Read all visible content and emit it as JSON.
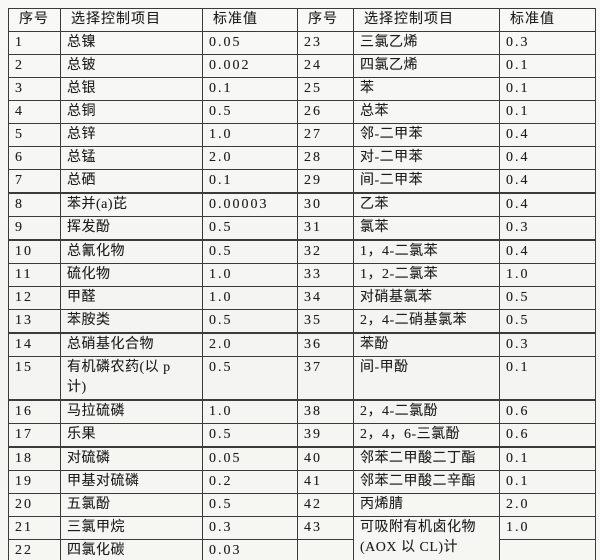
{
  "table": {
    "headers": [
      {
        "text": "序号"
      },
      {
        "text": "选择控制项目"
      },
      {
        "text": "标准值"
      },
      {
        "text": "序号"
      },
      {
        "text": "选择控制项目"
      },
      {
        "text": "标准值"
      }
    ],
    "rows": [
      {
        "cells": [
          {
            "text": "1",
            "type": "num"
          },
          {
            "text": "总镍",
            "type": "item"
          },
          {
            "text": "0.05",
            "type": "num"
          },
          {
            "text": "23",
            "type": "num"
          },
          {
            "text": "三氯乙烯",
            "type": "item"
          },
          {
            "text": "0.3",
            "type": "num"
          }
        ]
      },
      {
        "cells": [
          {
            "text": "2",
            "type": "num"
          },
          {
            "text": "总铍",
            "type": "item"
          },
          {
            "text": "0.002",
            "type": "num"
          },
          {
            "text": "24",
            "type": "num"
          },
          {
            "text": "四氯乙烯",
            "type": "item"
          },
          {
            "text": "0.1",
            "type": "num"
          }
        ]
      },
      {
        "cells": [
          {
            "text": "3",
            "type": "num"
          },
          {
            "text": "总银",
            "type": "item"
          },
          {
            "text": "0.1",
            "type": "num"
          },
          {
            "text": "25",
            "type": "num"
          },
          {
            "text": "苯",
            "type": "item"
          },
          {
            "text": "0.1",
            "type": "num"
          }
        ]
      },
      {
        "cells": [
          {
            "text": "4",
            "type": "num"
          },
          {
            "text": "总铜",
            "type": "item"
          },
          {
            "text": "0.5",
            "type": "num"
          },
          {
            "text": "26",
            "type": "num"
          },
          {
            "text": "总苯",
            "type": "item"
          },
          {
            "text": "0.1",
            "type": "num"
          }
        ]
      },
      {
        "cells": [
          {
            "text": "5",
            "type": "num"
          },
          {
            "text": "总锌",
            "type": "item"
          },
          {
            "text": "1.0",
            "type": "num"
          },
          {
            "text": "27",
            "type": "num"
          },
          {
            "text": "邻-二甲苯",
            "type": "item"
          },
          {
            "text": "0.4",
            "type": "num"
          }
        ]
      },
      {
        "cells": [
          {
            "text": "6",
            "type": "num"
          },
          {
            "text": "总锰",
            "type": "item"
          },
          {
            "text": "2.0",
            "type": "num"
          },
          {
            "text": "28",
            "type": "num"
          },
          {
            "text": "对-二甲苯",
            "type": "item"
          },
          {
            "text": "0.4",
            "type": "num"
          }
        ]
      },
      {
        "thick_bottom": true,
        "cells": [
          {
            "text": "7",
            "type": "num"
          },
          {
            "text": "总硒",
            "type": "item"
          },
          {
            "text": "0.1",
            "type": "num"
          },
          {
            "text": "29",
            "type": "num"
          },
          {
            "text": "间-二甲苯",
            "type": "item"
          },
          {
            "text": "0.4",
            "type": "num"
          }
        ]
      },
      {
        "cells": [
          {
            "text": "8",
            "type": "num"
          },
          {
            "text": "苯并(a)芘",
            "type": "item"
          },
          {
            "text": "0.00003",
            "type": "num"
          },
          {
            "text": "30",
            "type": "num"
          },
          {
            "text": "乙苯",
            "type": "item"
          },
          {
            "text": "0.4",
            "type": "num"
          }
        ]
      },
      {
        "thick_bottom": true,
        "cells": [
          {
            "text": "9",
            "type": "num"
          },
          {
            "text": "挥发酚",
            "type": "item"
          },
          {
            "text": "0.5",
            "type": "num"
          },
          {
            "text": "31",
            "type": "num"
          },
          {
            "text": "氯苯",
            "type": "item"
          },
          {
            "text": "0.3",
            "type": "num"
          }
        ]
      },
      {
        "cells": [
          {
            "text": "10",
            "type": "num"
          },
          {
            "text": "总氰化物",
            "type": "item"
          },
          {
            "text": "0.5",
            "type": "num"
          },
          {
            "text": "32",
            "type": "num"
          },
          {
            "text": "1，4-二氯苯",
            "type": "item"
          },
          {
            "text": "0.4",
            "type": "num"
          }
        ]
      },
      {
        "cells": [
          {
            "text": "11",
            "type": "num"
          },
          {
            "text": "硫化物",
            "type": "item"
          },
          {
            "text": "1.0",
            "type": "num"
          },
          {
            "text": "33",
            "type": "num"
          },
          {
            "text": "1，2-二氯苯",
            "type": "item"
          },
          {
            "text": "1.0",
            "type": "num"
          }
        ]
      },
      {
        "cells": [
          {
            "text": "12",
            "type": "num"
          },
          {
            "text": "甲醛",
            "type": "item"
          },
          {
            "text": "1.0",
            "type": "num"
          },
          {
            "text": "34",
            "type": "num"
          },
          {
            "text": "对硝基氯苯",
            "type": "item"
          },
          {
            "text": "0.5",
            "type": "num"
          }
        ]
      },
      {
        "thick_bottom": true,
        "cells": [
          {
            "text": "13",
            "type": "num"
          },
          {
            "text": "苯胺类",
            "type": "item"
          },
          {
            "text": "0.5",
            "type": "num"
          },
          {
            "text": "35",
            "type": "num"
          },
          {
            "text": "2，4-二硝基氯苯",
            "type": "item"
          },
          {
            "text": "0.5",
            "type": "num"
          }
        ]
      },
      {
        "cells": [
          {
            "text": "14",
            "type": "num"
          },
          {
            "text": "总硝基化合物",
            "type": "item"
          },
          {
            "text": "2.0",
            "type": "num"
          },
          {
            "text": "36",
            "type": "num"
          },
          {
            "text": "苯酚",
            "type": "item"
          },
          {
            "text": "0.3",
            "type": "num"
          }
        ]
      },
      {
        "thick_bottom": true,
        "cells": [
          {
            "text": "15",
            "type": "num"
          },
          {
            "text": "有机磷农药(以 p\n计)",
            "type": "item"
          },
          {
            "text": "0.5",
            "type": "num"
          },
          {
            "text": "37",
            "type": "num"
          },
          {
            "text": "间-甲酚",
            "type": "item"
          },
          {
            "text": "0.1",
            "type": "num"
          }
        ]
      },
      {
        "cells": [
          {
            "text": "16",
            "type": "num"
          },
          {
            "text": "马拉硫磷",
            "type": "item"
          },
          {
            "text": "1.0",
            "type": "num"
          },
          {
            "text": "38",
            "type": "num"
          },
          {
            "text": "2，4-二氯酚",
            "type": "item"
          },
          {
            "text": "0.6",
            "type": "num"
          }
        ]
      },
      {
        "thick_bottom": true,
        "cells": [
          {
            "text": "17",
            "type": "num"
          },
          {
            "text": "乐果",
            "type": "item"
          },
          {
            "text": "0.5",
            "type": "num"
          },
          {
            "text": "39",
            "type": "num"
          },
          {
            "text": "2，4，6-三氯酚",
            "type": "item"
          },
          {
            "text": "0.6",
            "type": "num"
          }
        ]
      },
      {
        "cells": [
          {
            "text": "18",
            "type": "num"
          },
          {
            "text": "对硫磷",
            "type": "item"
          },
          {
            "text": "0.05",
            "type": "num"
          },
          {
            "text": "40",
            "type": "num"
          },
          {
            "text": "邻苯二甲酸二丁酯",
            "type": "item"
          },
          {
            "text": "0.1",
            "type": "num"
          }
        ]
      },
      {
        "cells": [
          {
            "text": "19",
            "type": "num"
          },
          {
            "text": "甲基对硫磷",
            "type": "item"
          },
          {
            "text": "0.2",
            "type": "num"
          },
          {
            "text": "41",
            "type": "num"
          },
          {
            "text": "邻苯二甲酸二辛酯",
            "type": "item"
          },
          {
            "text": "0.1",
            "type": "num"
          }
        ]
      },
      {
        "cells": [
          {
            "text": "20",
            "type": "num"
          },
          {
            "text": "五氯酚",
            "type": "item"
          },
          {
            "text": "0.5",
            "type": "num"
          },
          {
            "text": "42",
            "type": "num"
          },
          {
            "text": "丙烯腈",
            "type": "item"
          },
          {
            "text": "2.0",
            "type": "num"
          }
        ]
      },
      {
        "cells": [
          {
            "text": "21",
            "type": "num"
          },
          {
            "text": "三氯甲烷",
            "type": "item"
          },
          {
            "text": "0.3",
            "type": "num"
          },
          {
            "text": "43",
            "type": "num"
          },
          {
            "text": "可吸附有机卤化物\n(AOX 以 CL)计",
            "type": "item",
            "rowspan": 2
          },
          {
            "text": "1.0",
            "type": "num"
          }
        ]
      },
      {
        "cells": [
          {
            "text": "22",
            "type": "num"
          },
          {
            "text": "四氯化碳",
            "type": "item"
          },
          {
            "text": "0.03",
            "type": "num"
          },
          {
            "text": "",
            "type": "num"
          },
          {
            "text": "",
            "type": "num"
          }
        ]
      }
    ]
  }
}
